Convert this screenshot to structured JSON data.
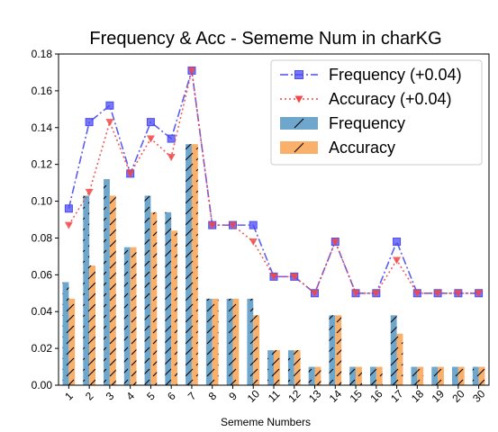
{
  "chart_data": {
    "type": "bar",
    "title": "Frequency & Acc - Sememe Num in charKG",
    "xlabel": "Sememe Numbers",
    "ylabel": "",
    "ylim": [
      0,
      0.18
    ],
    "yticks": [
      "0.00",
      "0.02",
      "0.04",
      "0.06",
      "0.08",
      "0.10",
      "0.12",
      "0.14",
      "0.16",
      "0.18"
    ],
    "categories": [
      "1",
      "2",
      "3",
      "4",
      "5",
      "6",
      "7",
      "8",
      "9",
      "10",
      "11",
      "12",
      "13",
      "14",
      "15",
      "16",
      "17",
      "18",
      "19",
      "20",
      "30"
    ],
    "grid": false,
    "legend_position": "top-right",
    "series": [
      {
        "name": "Frequency (+0.04)",
        "kind": "line",
        "color": "#4b4bf5",
        "values": [
          0.096,
          0.143,
          0.152,
          0.115,
          0.143,
          0.134,
          0.171,
          0.087,
          0.087,
          0.087,
          0.059,
          0.059,
          0.05,
          0.078,
          0.05,
          0.05,
          0.078,
          0.05,
          0.05,
          0.05,
          0.05
        ]
      },
      {
        "name": "Accuracy (+0.04)",
        "kind": "line",
        "color": "#f04848",
        "values": [
          0.087,
          0.105,
          0.143,
          0.115,
          0.134,
          0.124,
          0.171,
          0.087,
          0.087,
          0.078,
          0.059,
          0.059,
          0.05,
          0.078,
          0.05,
          0.05,
          0.068,
          0.05,
          0.05,
          0.05,
          0.05
        ]
      },
      {
        "name": "Frequency",
        "kind": "bar",
        "color": "#6fa6cc",
        "values": [
          0.056,
          0.103,
          0.112,
          0.075,
          0.103,
          0.094,
          0.131,
          0.047,
          0.047,
          0.047,
          0.019,
          0.019,
          0.01,
          0.038,
          0.01,
          0.01,
          0.038,
          0.01,
          0.01,
          0.01,
          0.01
        ]
      },
      {
        "name": "Accuracy",
        "kind": "bar",
        "color": "#f9b06a",
        "values": [
          0.047,
          0.065,
          0.103,
          0.075,
          0.094,
          0.084,
          0.131,
          0.047,
          0.047,
          0.038,
          0.019,
          0.019,
          0.01,
          0.038,
          0.01,
          0.01,
          0.028,
          0.01,
          0.01,
          0.01,
          0.01
        ]
      }
    ]
  }
}
